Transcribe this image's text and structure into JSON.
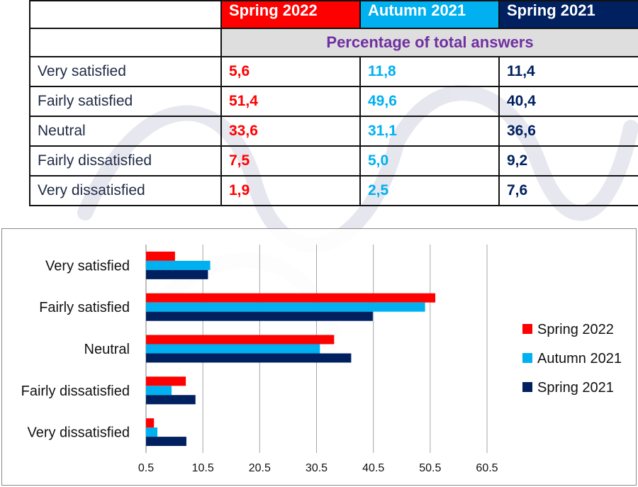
{
  "table": {
    "headers": [
      "",
      "Spring 2022",
      "Autumn 2021",
      "Spring 2021"
    ],
    "header_colors": [
      "",
      "#ff0000",
      "#00b0f0",
      "#002060"
    ],
    "subheader": "Percentage of total answers",
    "rows": [
      {
        "label": "Very satisfied",
        "values": [
          "5,6",
          "11,8",
          "11,4"
        ]
      },
      {
        "label": "Fairly satisfied",
        "values": [
          "51,4",
          "49,6",
          "40,4"
        ]
      },
      {
        "label": "Neutral",
        "values": [
          "33,6",
          "31,1",
          "36,6"
        ]
      },
      {
        "label": "Fairly dissatisfied",
        "values": [
          "7,5",
          "5,0",
          "9,2"
        ]
      },
      {
        "label": "Very dissatisfied",
        "values": [
          "1,9",
          "2,5",
          "7,6"
        ]
      }
    ]
  },
  "chart_data": {
    "type": "bar",
    "orientation": "horizontal",
    "categories": [
      "Very satisfied",
      "Fairly satisfied",
      "Neutral",
      "Fairly dissatisfied",
      "Very dissatisfied"
    ],
    "series": [
      {
        "name": "Spring 2022",
        "color": "#ff0000",
        "values": [
          5.6,
          51.4,
          33.6,
          7.5,
          1.9
        ]
      },
      {
        "name": "Autumn 2021",
        "color": "#00b0f0",
        "values": [
          11.8,
          49.6,
          31.1,
          5.0,
          2.5
        ]
      },
      {
        "name": "Spring 2021",
        "color": "#002060",
        "values": [
          11.4,
          40.4,
          36.6,
          9.2,
          7.6
        ]
      }
    ],
    "xticks": [
      "0.5",
      "10.5",
      "20.5",
      "30.5",
      "40.5",
      "50.5",
      "60.5"
    ],
    "xlim": [
      0.5,
      60.5
    ],
    "grid": true,
    "legend_position": "right"
  }
}
